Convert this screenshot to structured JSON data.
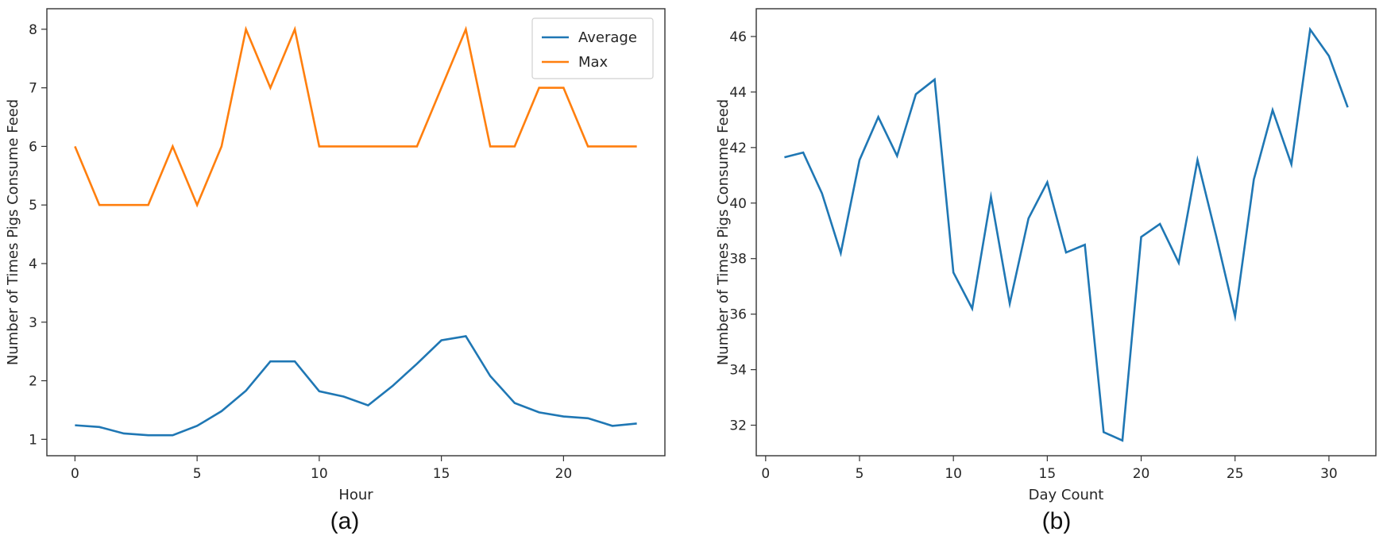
{
  "chart_data": [
    {
      "type": "line",
      "caption": "(a)",
      "xlabel": "Hour",
      "ylabel": "Number of Times Pigs Consume Feed",
      "xlim": [
        -1.15,
        24.15
      ],
      "ylim": [
        0.72,
        8.35
      ],
      "xticks": [
        0,
        5,
        10,
        15,
        20
      ],
      "yticks": [
        1,
        2,
        3,
        4,
        5,
        6,
        7,
        8
      ],
      "legend": "top-right",
      "x": [
        0,
        1,
        2,
        3,
        4,
        5,
        6,
        7,
        8,
        9,
        10,
        11,
        12,
        13,
        14,
        15,
        16,
        17,
        18,
        19,
        20,
        21,
        22,
        23
      ],
      "series": [
        {
          "name": "Average",
          "color": "#1f77b4",
          "values": [
            1.24,
            1.21,
            1.1,
            1.07,
            1.07,
            1.23,
            1.48,
            1.83,
            2.33,
            2.33,
            1.82,
            1.73,
            1.58,
            1.91,
            2.29,
            2.69,
            2.76,
            2.08,
            1.62,
            1.46,
            1.39,
            1.36,
            1.23,
            1.27
          ]
        },
        {
          "name": "Max",
          "color": "#ff7f0e",
          "values": [
            6,
            5,
            5,
            5,
            6,
            5,
            6,
            8,
            7,
            8,
            6,
            6,
            6,
            6,
            6,
            7,
            8,
            6,
            6,
            7,
            7,
            6,
            6,
            6
          ]
        }
      ]
    },
    {
      "type": "line",
      "caption": "(b)",
      "xlabel": "Day Count",
      "ylabel": "Number of Times Pigs Consume Feed",
      "xlim": [
        -0.5,
        32.5
      ],
      "ylim": [
        30.9,
        47.0
      ],
      "xticks": [
        0,
        5,
        10,
        15,
        20,
        25,
        30
      ],
      "yticks": [
        32,
        34,
        36,
        38,
        40,
        42,
        44,
        46
      ],
      "x": [
        1,
        2,
        3,
        4,
        5,
        6,
        7,
        8,
        9,
        10,
        11,
        12,
        13,
        14,
        15,
        16,
        17,
        18,
        19,
        20,
        21,
        22,
        23,
        24,
        25,
        26,
        27,
        28,
        29,
        30,
        31
      ],
      "series": [
        {
          "name": "",
          "color": "#1f77b4",
          "values": [
            41.65,
            41.82,
            40.35,
            38.2,
            41.55,
            43.1,
            41.7,
            43.92,
            44.45,
            37.5,
            36.2,
            40.22,
            36.38,
            39.45,
            40.75,
            38.22,
            38.5,
            31.75,
            31.45,
            38.78,
            39.25,
            37.85,
            41.55,
            38.8,
            35.92,
            40.85,
            43.35,
            41.4,
            46.25,
            45.3,
            43.45
          ]
        }
      ]
    }
  ]
}
